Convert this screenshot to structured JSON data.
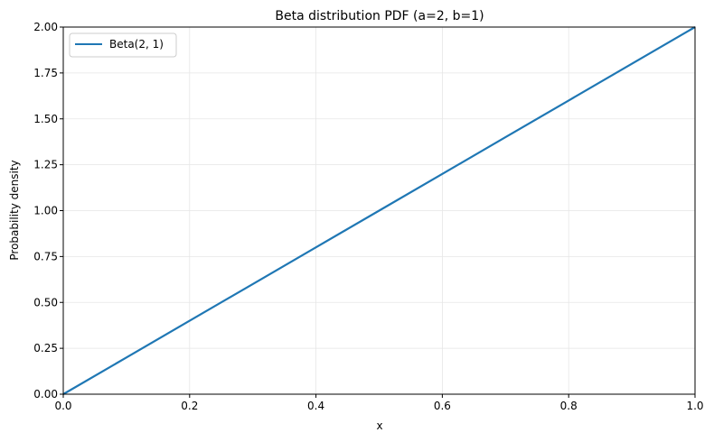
{
  "chart_data": {
    "type": "line",
    "title": "Beta distribution PDF (a=2, b=1)",
    "xlabel": "x",
    "ylabel": "Probability density",
    "xlim": [
      0.0,
      1.0
    ],
    "ylim": [
      0.0,
      2.0
    ],
    "xticks": [
      0.0,
      0.2,
      0.4,
      0.6,
      0.8,
      1.0
    ],
    "xtick_labels": [
      "0.0",
      "0.2",
      "0.4",
      "0.6",
      "0.8",
      "1.0"
    ],
    "yticks": [
      0.0,
      0.25,
      0.5,
      0.75,
      1.0,
      1.25,
      1.5,
      1.75,
      2.0
    ],
    "ytick_labels": [
      "0.00",
      "0.25",
      "0.50",
      "0.75",
      "1.00",
      "1.25",
      "1.50",
      "1.75",
      "2.00"
    ],
    "grid": true,
    "legend_position": "top-left",
    "series": [
      {
        "name": "Beta(2, 1)",
        "color": "#1f77b4",
        "x": [
          0.0,
          0.1,
          0.2,
          0.3,
          0.4,
          0.5,
          0.6,
          0.7,
          0.8,
          0.9,
          1.0
        ],
        "y": [
          0.0,
          0.2,
          0.4,
          0.6,
          0.8,
          1.0,
          1.2,
          1.4,
          1.6,
          1.8,
          2.0
        ]
      }
    ]
  }
}
